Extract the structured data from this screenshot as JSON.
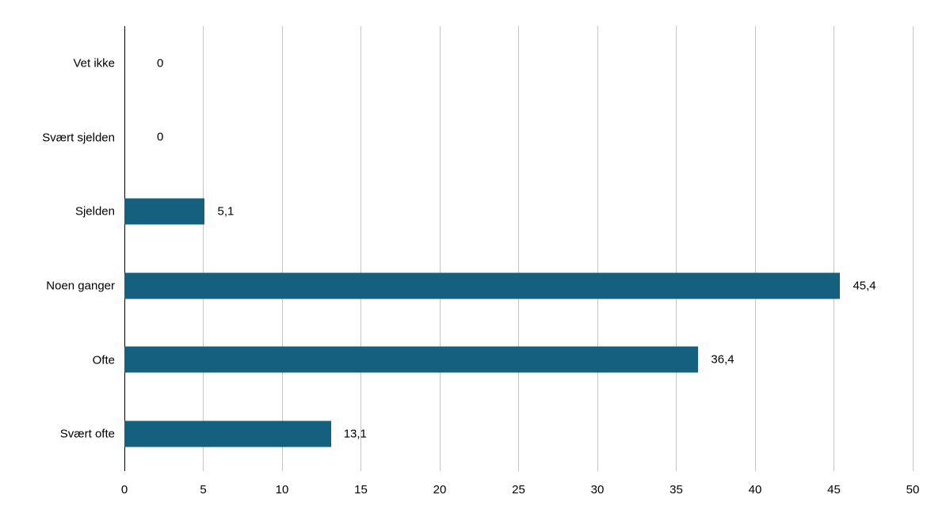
{
  "chart_data": {
    "type": "bar",
    "orientation": "horizontal",
    "title": "",
    "xlabel": "",
    "ylabel": "",
    "categories": [
      "Vet ikke",
      "Svært sjelden",
      "Sjelden",
      "Noen ganger",
      "Ofte",
      "Svært ofte"
    ],
    "values": [
      0,
      0,
      5.1,
      45.4,
      36.4,
      13.1
    ],
    "value_labels": [
      "0",
      "0",
      "5,1",
      "45,4",
      "36,4",
      "13,1"
    ],
    "xlim": [
      0,
      50
    ],
    "xticks": [
      0,
      5,
      10,
      15,
      20,
      25,
      30,
      35,
      40,
      45,
      50
    ],
    "xtick_labels": [
      "0",
      "5",
      "10",
      "15",
      "20",
      "25",
      "30",
      "35",
      "40",
      "45",
      "50"
    ],
    "grid": true,
    "legend": false,
    "colors": {
      "bar": "#15607e",
      "gridline": "#c6c6c6",
      "zero_line": "#000000",
      "text": "#000000",
      "background": "#ffffff"
    }
  }
}
